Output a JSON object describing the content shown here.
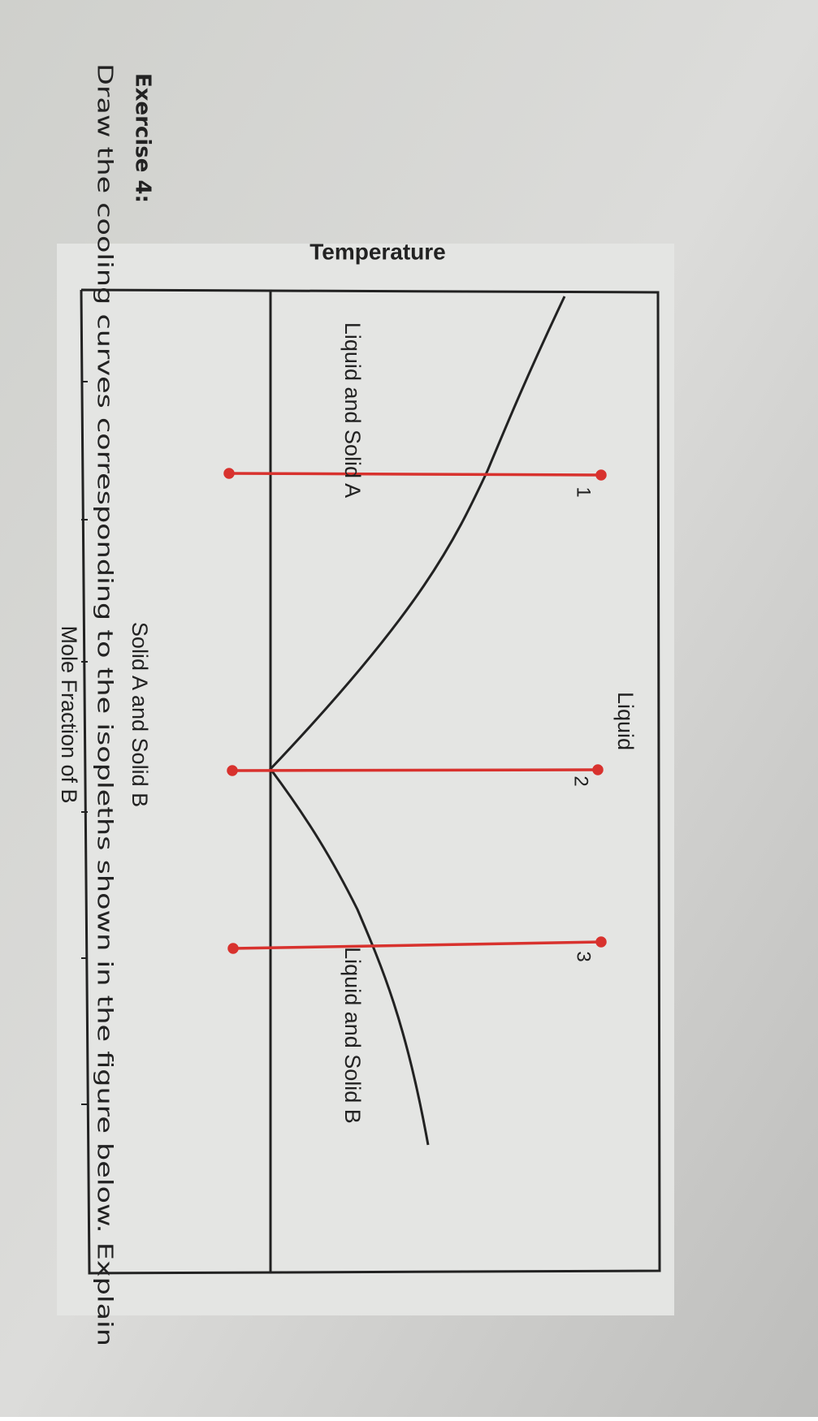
{
  "header": {
    "title": "Exercise 4:",
    "instructions": "Draw the cooling curves corresponding to the isopleths shown in the figure below. Explain"
  },
  "diagram": {
    "y_axis_label": "Temperature",
    "x_axis_label": "Mole Fraction of B",
    "regions": [
      "Liquid",
      "Liquid and Solid A",
      "Liquid and Solid B",
      "Solid A and Solid B"
    ],
    "isopleths": [
      "1",
      "2",
      "3"
    ]
  }
}
